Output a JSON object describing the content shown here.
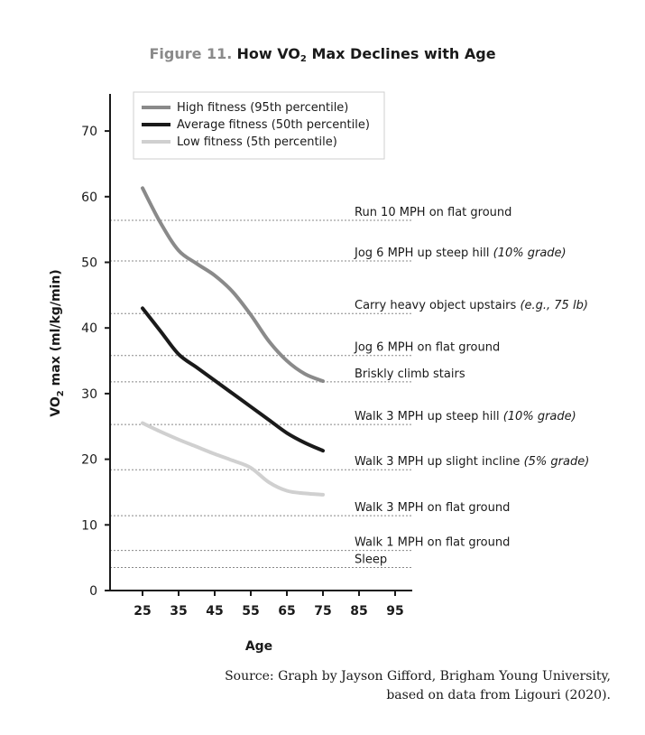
{
  "title": {
    "figure_label": "Figure 11.",
    "text_before": "How VO",
    "subscript": "2",
    "text_after": " Max Declines with Age"
  },
  "chart_data": {
    "type": "line",
    "xlabel": "Age",
    "ylabel_prefix": "VO",
    "ylabel_sub": "2",
    "ylabel_suffix": " max (ml/kg/min)",
    "xlim": [
      17,
      103
    ],
    "ylim": [
      0,
      75
    ],
    "x_ticks": [
      25,
      35,
      45,
      55,
      65,
      75,
      85,
      95
    ],
    "y_ticks": [
      0,
      10,
      20,
      30,
      40,
      50,
      60,
      70
    ],
    "grid": false,
    "legend_position": "top-left",
    "series": [
      {
        "name": "High fitness (95th percentile)",
        "color": "#8a8a8a",
        "x": [
          25,
          30,
          35,
          40,
          45,
          50,
          55,
          60,
          65,
          70,
          75
        ],
        "y": [
          61.3,
          56.0,
          51.8,
          49.8,
          48.0,
          45.5,
          42.0,
          38.0,
          35.0,
          33.0,
          31.9
        ]
      },
      {
        "name": "Average fitness (50th percentile)",
        "color": "#1a1a1a",
        "x": [
          25,
          30,
          35,
          40,
          45,
          50,
          55,
          60,
          65,
          70,
          75
        ],
        "y": [
          43.0,
          39.5,
          36.0,
          34.0,
          32.0,
          30.0,
          28.0,
          26.0,
          24.0,
          22.5,
          21.3
        ]
      },
      {
        "name": "Low fitness (5th percentile)",
        "color": "#d0d0d0",
        "x": [
          25,
          30,
          35,
          40,
          45,
          50,
          55,
          60,
          65,
          70,
          75
        ],
        "y": [
          25.5,
          24.2,
          23.0,
          21.9,
          20.8,
          19.8,
          18.7,
          16.5,
          15.2,
          14.8,
          14.6
        ]
      }
    ],
    "activities": [
      {
        "label": "Run 10 MPH on flat ground",
        "note": "",
        "y": 56.4
      },
      {
        "label": "Jog 6 MPH up steep hill ",
        "note": "(10% grade)",
        "y": 50.2
      },
      {
        "label": "Carry heavy object upstairs ",
        "note": "(e.g., 75 lb)",
        "y": 42.2
      },
      {
        "label": "Jog 6 MPH on flat ground",
        "note": "",
        "y": 35.8
      },
      {
        "label": "Briskly climb stairs",
        "note": "",
        "y": 31.8
      },
      {
        "label": "Walk 3 MPH up steep hill ",
        "note": "(10% grade)",
        "y": 25.3
      },
      {
        "label": "Walk 3 MPH up slight incline ",
        "note": "(5% grade)",
        "y": 18.4
      },
      {
        "label": "Walk 3 MPH on flat ground",
        "note": "",
        "y": 11.4
      },
      {
        "label": "Walk 1 MPH on flat ground",
        "note": "",
        "y": 6.1
      },
      {
        "label": "Sleep",
        "note": "",
        "y": 3.5
      }
    ]
  },
  "source": {
    "line1": "Source: Graph by Jayson Gifford, Brigham Young University,",
    "line2": "based on data from Ligouri (2020)."
  }
}
